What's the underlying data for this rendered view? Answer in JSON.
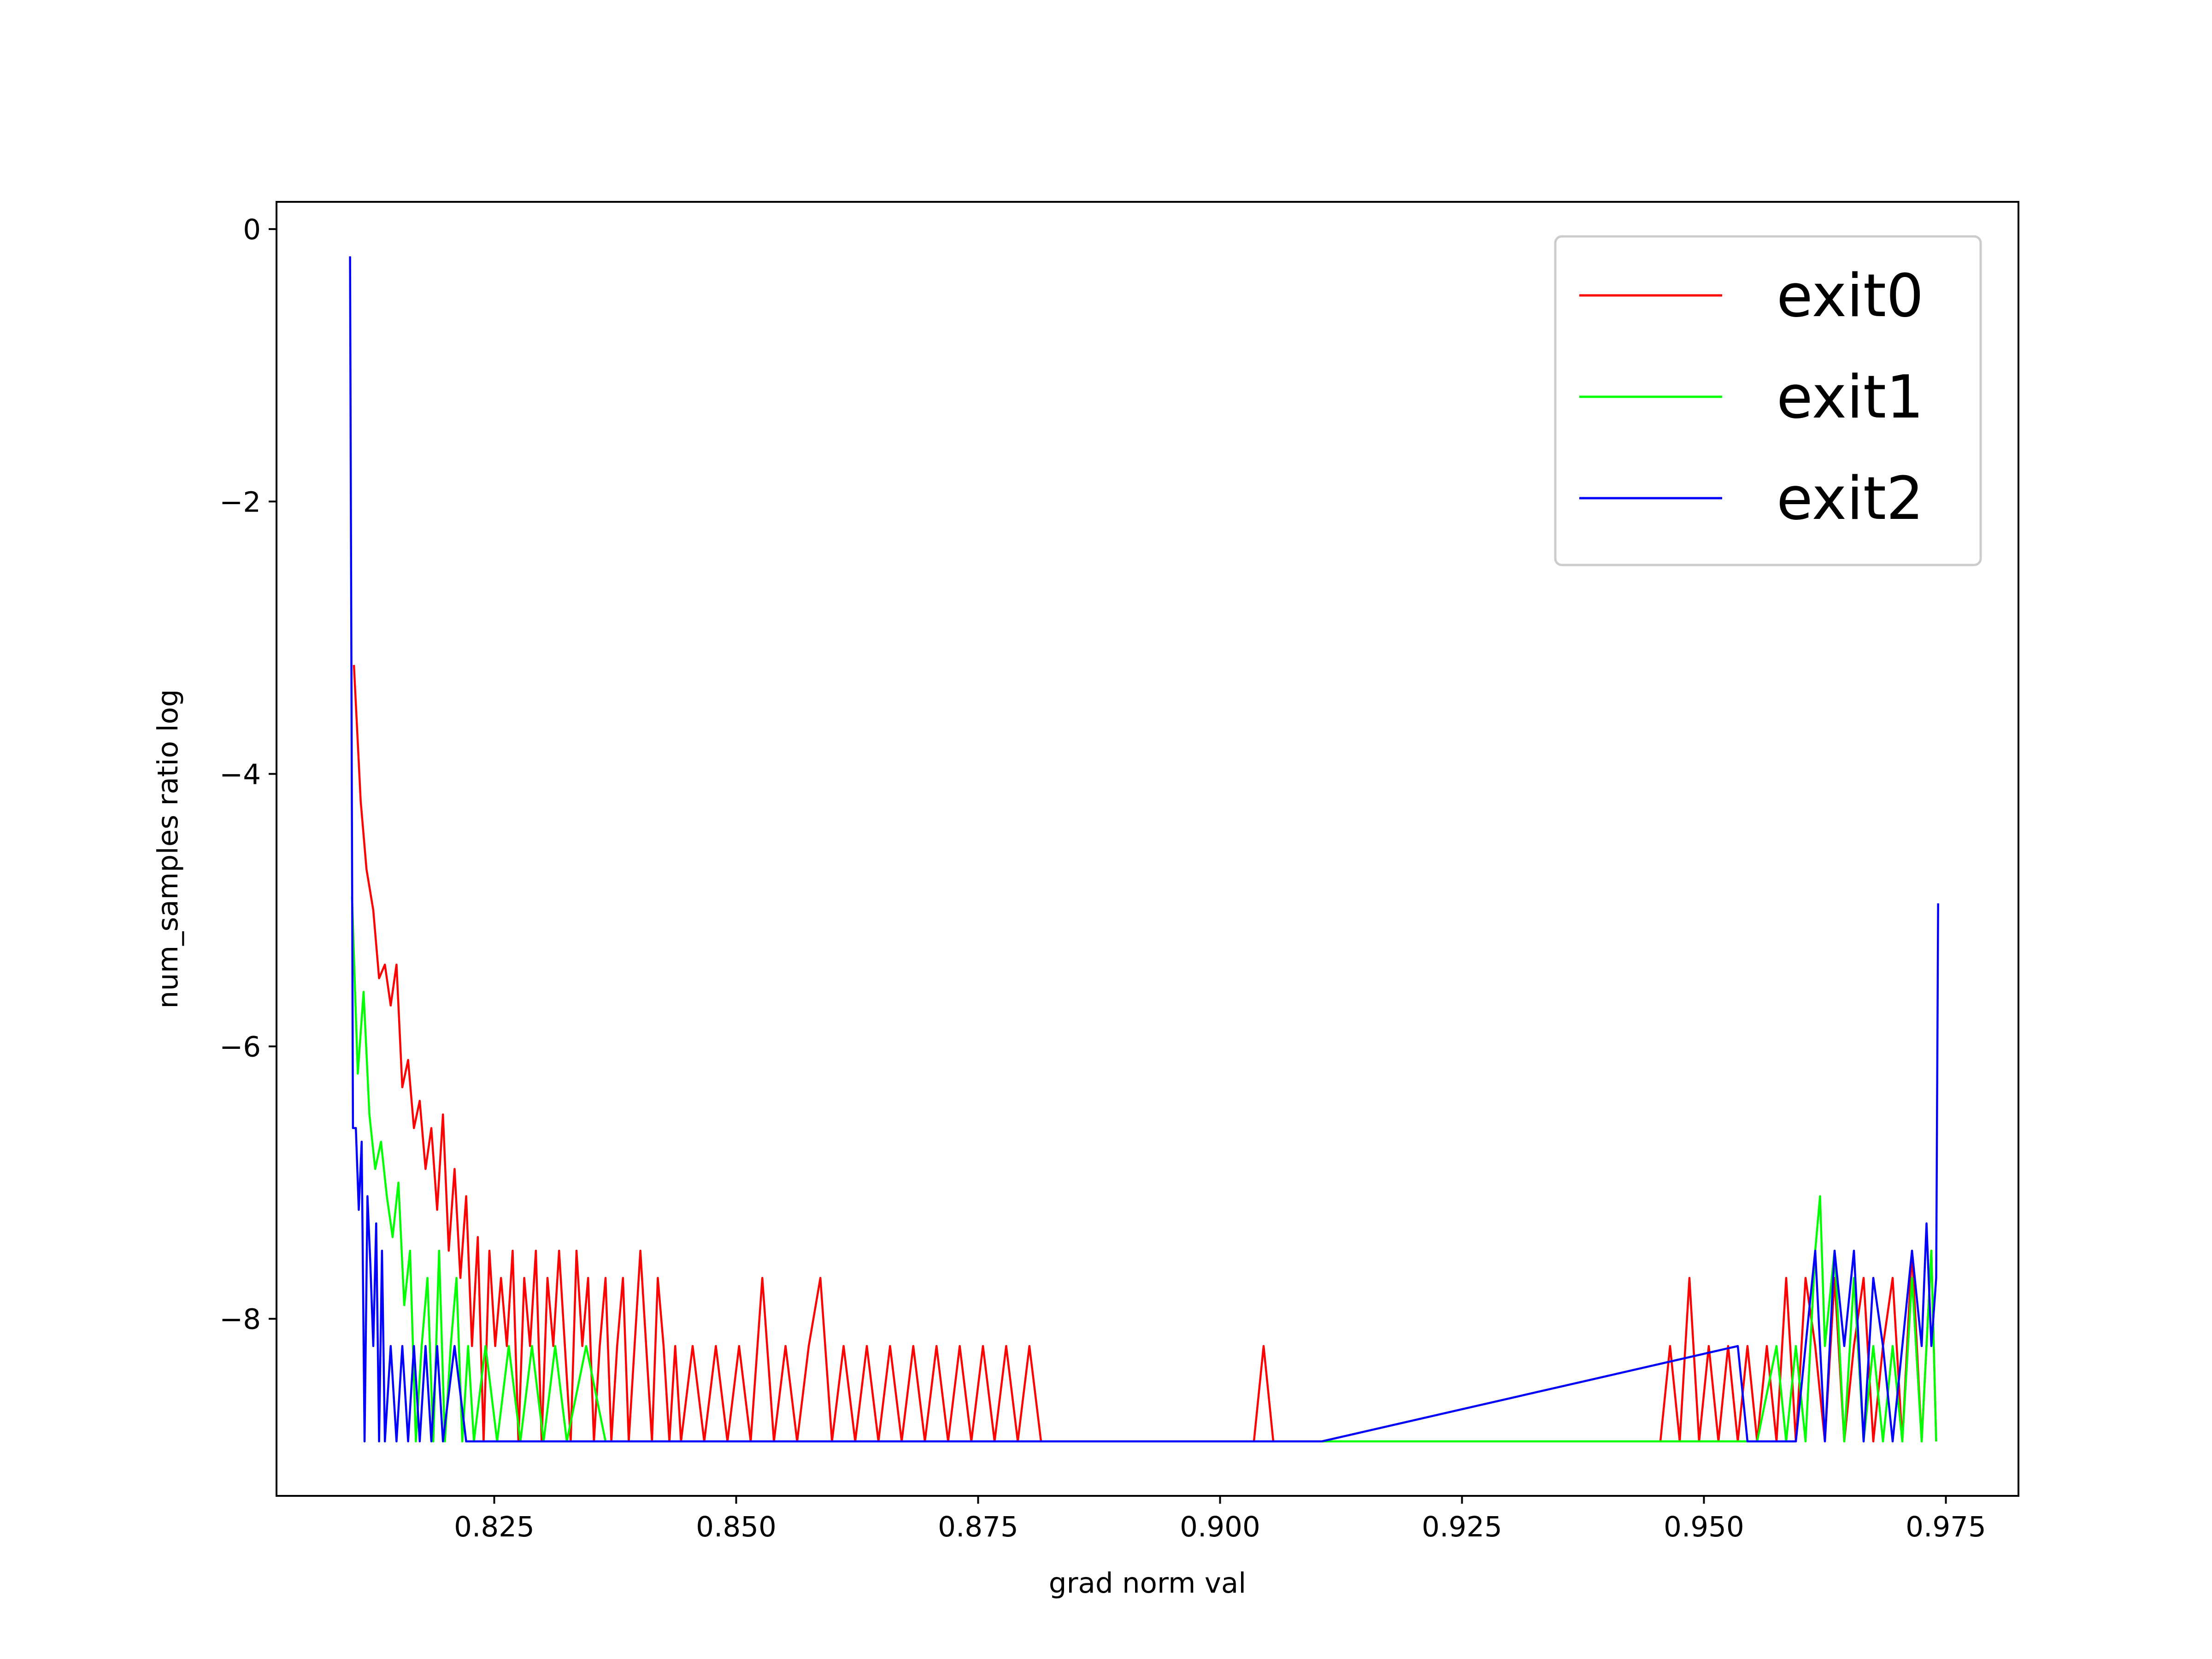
{
  "chart_data": {
    "type": "line",
    "title": "",
    "xlabel": "grad norm val",
    "ylabel": "num_samples ratio log",
    "xlim": [
      0.8025,
      0.9825
    ],
    "ylim": [
      -9.3,
      0.2
    ],
    "xticks": [
      {
        "value": 0.825,
        "label": "0.825"
      },
      {
        "value": 0.85,
        "label": "0.850"
      },
      {
        "value": 0.875,
        "label": "0.875"
      },
      {
        "value": 0.9,
        "label": "0.900"
      },
      {
        "value": 0.925,
        "label": "0.925"
      },
      {
        "value": 0.95,
        "label": "0.950"
      },
      {
        "value": 0.975,
        "label": "0.975"
      }
    ],
    "yticks": [
      {
        "value": 0,
        "label": "0"
      },
      {
        "value": -2,
        "label": "−2"
      },
      {
        "value": -4,
        "label": "−4"
      },
      {
        "value": -6,
        "label": "−6"
      },
      {
        "value": -8,
        "label": "−8"
      }
    ],
    "grid": false,
    "legend_position": "top-right",
    "series": [
      {
        "name": "exit0",
        "color": "#ff0000",
        "points": [
          [
            0.8105,
            -3.2
          ],
          [
            0.8112,
            -4.2
          ],
          [
            0.8118,
            -4.7
          ],
          [
            0.8125,
            -5.0
          ],
          [
            0.8131,
            -5.5
          ],
          [
            0.8137,
            -5.4
          ],
          [
            0.8143,
            -5.7
          ],
          [
            0.8149,
            -5.4
          ],
          [
            0.8155,
            -6.3
          ],
          [
            0.8161,
            -6.1
          ],
          [
            0.8167,
            -6.6
          ],
          [
            0.8173,
            -6.4
          ],
          [
            0.8179,
            -6.9
          ],
          [
            0.8185,
            -6.6
          ],
          [
            0.8191,
            -7.2
          ],
          [
            0.8197,
            -6.5
          ],
          [
            0.8203,
            -7.5
          ],
          [
            0.8209,
            -6.9
          ],
          [
            0.8215,
            -7.7
          ],
          [
            0.8221,
            -7.1
          ],
          [
            0.8227,
            -8.2
          ],
          [
            0.8233,
            -7.4
          ],
          [
            0.8239,
            -8.9
          ],
          [
            0.8245,
            -7.5
          ],
          [
            0.8251,
            -8.2
          ],
          [
            0.8257,
            -7.7
          ],
          [
            0.8263,
            -8.2
          ],
          [
            0.8269,
            -7.5
          ],
          [
            0.8275,
            -8.9
          ],
          [
            0.8281,
            -7.7
          ],
          [
            0.8287,
            -8.2
          ],
          [
            0.8293,
            -7.5
          ],
          [
            0.8299,
            -8.9
          ],
          [
            0.8305,
            -7.7
          ],
          [
            0.8311,
            -8.2
          ],
          [
            0.8317,
            -7.5
          ],
          [
            0.8323,
            -8.2
          ],
          [
            0.8329,
            -8.9
          ],
          [
            0.8335,
            -7.5
          ],
          [
            0.8341,
            -8.2
          ],
          [
            0.8347,
            -7.7
          ],
          [
            0.8353,
            -8.9
          ],
          [
            0.8359,
            -8.2
          ],
          [
            0.8365,
            -7.7
          ],
          [
            0.8371,
            -8.9
          ],
          [
            0.8377,
            -8.2
          ],
          [
            0.8383,
            -7.7
          ],
          [
            0.8389,
            -8.9
          ],
          [
            0.8395,
            -8.2
          ],
          [
            0.8401,
            -7.5
          ],
          [
            0.8407,
            -8.2
          ],
          [
            0.8413,
            -8.9
          ],
          [
            0.8419,
            -7.7
          ],
          [
            0.8425,
            -8.2
          ],
          [
            0.8431,
            -8.9
          ],
          [
            0.8437,
            -8.2
          ],
          [
            0.8443,
            -8.9
          ],
          [
            0.8455,
            -8.2
          ],
          [
            0.8467,
            -8.9
          ],
          [
            0.8479,
            -8.2
          ],
          [
            0.8491,
            -8.9
          ],
          [
            0.8503,
            -8.2
          ],
          [
            0.8515,
            -8.9
          ],
          [
            0.8527,
            -7.7
          ],
          [
            0.8539,
            -8.9
          ],
          [
            0.8551,
            -8.2
          ],
          [
            0.8563,
            -8.9
          ],
          [
            0.8575,
            -8.2
          ],
          [
            0.8587,
            -7.7
          ],
          [
            0.8599,
            -8.9
          ],
          [
            0.8611,
            -8.2
          ],
          [
            0.8623,
            -8.9
          ],
          [
            0.8635,
            -8.2
          ],
          [
            0.8647,
            -8.9
          ],
          [
            0.8659,
            -8.2
          ],
          [
            0.8671,
            -8.9
          ],
          [
            0.8683,
            -8.2
          ],
          [
            0.8695,
            -8.9
          ],
          [
            0.8707,
            -8.2
          ],
          [
            0.8719,
            -8.9
          ],
          [
            0.8731,
            -8.2
          ],
          [
            0.8743,
            -8.9
          ],
          [
            0.8755,
            -8.2
          ],
          [
            0.8767,
            -8.9
          ],
          [
            0.8779,
            -8.2
          ],
          [
            0.8791,
            -8.9
          ],
          [
            0.8803,
            -8.2
          ],
          [
            0.8815,
            -8.9
          ],
          [
            0.8835,
            -8.9
          ],
          [
            0.8855,
            -8.9
          ],
          [
            0.8875,
            -8.9
          ],
          [
            0.8895,
            -8.9
          ],
          [
            0.8915,
            -8.9
          ],
          [
            0.8935,
            -8.9
          ],
          [
            0.8955,
            -8.9
          ],
          [
            0.8975,
            -8.9
          ],
          [
            0.8995,
            -8.9
          ],
          [
            0.9015,
            -8.9
          ],
          [
            0.9035,
            -8.9
          ],
          [
            0.9045,
            -8.2
          ],
          [
            0.9055,
            -8.9
          ],
          [
            0.9095,
            -8.9
          ],
          [
            0.9135,
            -8.9
          ],
          [
            0.9175,
            -8.9
          ],
          [
            0.9215,
            -8.9
          ],
          [
            0.9255,
            -8.9
          ],
          [
            0.9295,
            -8.9
          ],
          [
            0.9335,
            -8.9
          ],
          [
            0.9375,
            -8.9
          ],
          [
            0.9415,
            -8.9
          ],
          [
            0.9455,
            -8.9
          ],
          [
            0.9465,
            -8.2
          ],
          [
            0.9475,
            -8.9
          ],
          [
            0.9485,
            -7.7
          ],
          [
            0.9495,
            -8.9
          ],
          [
            0.9505,
            -8.2
          ],
          [
            0.9515,
            -8.9
          ],
          [
            0.9525,
            -8.2
          ],
          [
            0.9535,
            -8.9
          ],
          [
            0.9545,
            -8.2
          ],
          [
            0.9555,
            -8.9
          ],
          [
            0.9565,
            -8.2
          ],
          [
            0.9575,
            -8.9
          ],
          [
            0.9585,
            -7.7
          ],
          [
            0.9595,
            -8.9
          ],
          [
            0.9605,
            -7.7
          ],
          [
            0.9615,
            -8.2
          ],
          [
            0.9625,
            -8.9
          ],
          [
            0.9635,
            -7.7
          ],
          [
            0.9645,
            -8.9
          ],
          [
            0.9655,
            -8.2
          ],
          [
            0.9665,
            -7.7
          ],
          [
            0.9675,
            -8.9
          ],
          [
            0.9685,
            -8.2
          ],
          [
            0.9695,
            -7.7
          ],
          [
            0.9705,
            -8.9
          ],
          [
            0.9715,
            -7.5
          ],
          [
            0.9725,
            -8.9
          ],
          [
            0.9735,
            -7.5
          ],
          [
            0.974,
            -8.9
          ]
        ]
      },
      {
        "name": "exit1",
        "color": "#00ff00",
        "points": [
          [
            0.8103,
            -4.9
          ],
          [
            0.8109,
            -6.2
          ],
          [
            0.8115,
            -5.6
          ],
          [
            0.8121,
            -6.5
          ],
          [
            0.8127,
            -6.9
          ],
          [
            0.8133,
            -6.7
          ],
          [
            0.8139,
            -7.1
          ],
          [
            0.8145,
            -7.4
          ],
          [
            0.8151,
            -7.0
          ],
          [
            0.8157,
            -7.9
          ],
          [
            0.8163,
            -7.5
          ],
          [
            0.8169,
            -8.9
          ],
          [
            0.8175,
            -8.2
          ],
          [
            0.8181,
            -7.7
          ],
          [
            0.8187,
            -8.9
          ],
          [
            0.8193,
            -7.5
          ],
          [
            0.8199,
            -8.9
          ],
          [
            0.8205,
            -8.2
          ],
          [
            0.8211,
            -7.7
          ],
          [
            0.8217,
            -8.9
          ],
          [
            0.8223,
            -8.2
          ],
          [
            0.8229,
            -8.9
          ],
          [
            0.8241,
            -8.2
          ],
          [
            0.8253,
            -8.9
          ],
          [
            0.8265,
            -8.2
          ],
          [
            0.8277,
            -8.9
          ],
          [
            0.8289,
            -8.2
          ],
          [
            0.8301,
            -8.9
          ],
          [
            0.8313,
            -8.2
          ],
          [
            0.8325,
            -8.9
          ],
          [
            0.8345,
            -8.2
          ],
          [
            0.8365,
            -8.9
          ],
          [
            0.8385,
            -8.9
          ],
          [
            0.8405,
            -8.9
          ],
          [
            0.8465,
            -8.9
          ],
          [
            0.8525,
            -8.9
          ],
          [
            0.8585,
            -8.9
          ],
          [
            0.8705,
            -8.9
          ],
          [
            0.8765,
            -8.9
          ],
          [
            0.8805,
            -8.9
          ],
          [
            0.8955,
            -8.9
          ],
          [
            0.9185,
            -8.9
          ],
          [
            0.9275,
            -8.9
          ],
          [
            0.9555,
            -8.9
          ],
          [
            0.9575,
            -8.2
          ],
          [
            0.9585,
            -8.9
          ],
          [
            0.9595,
            -8.2
          ],
          [
            0.9605,
            -8.9
          ],
          [
            0.9615,
            -7.5
          ],
          [
            0.962,
            -7.1
          ],
          [
            0.9625,
            -8.2
          ],
          [
            0.9635,
            -7.5
          ],
          [
            0.9645,
            -8.9
          ],
          [
            0.9655,
            -7.7
          ],
          [
            0.9665,
            -8.9
          ],
          [
            0.9675,
            -8.2
          ],
          [
            0.9685,
            -8.9
          ],
          [
            0.9695,
            -8.2
          ],
          [
            0.9705,
            -8.9
          ],
          [
            0.9715,
            -7.7
          ],
          [
            0.9725,
            -8.9
          ],
          [
            0.9735,
            -7.5
          ],
          [
            0.974,
            -8.9
          ]
        ]
      },
      {
        "name": "exit2",
        "color": "#0000ff",
        "points": [
          [
            0.8101,
            -0.2
          ],
          [
            0.8104,
            -6.6
          ],
          [
            0.8107,
            -6.6
          ],
          [
            0.811,
            -7.2
          ],
          [
            0.8113,
            -6.7
          ],
          [
            0.8116,
            -8.9
          ],
          [
            0.8119,
            -7.1
          ],
          [
            0.8122,
            -7.6
          ],
          [
            0.8125,
            -8.2
          ],
          [
            0.8128,
            -7.3
          ],
          [
            0.8131,
            -8.9
          ],
          [
            0.8134,
            -7.5
          ],
          [
            0.8137,
            -8.9
          ],
          [
            0.8143,
            -8.2
          ],
          [
            0.8149,
            -8.9
          ],
          [
            0.8155,
            -8.2
          ],
          [
            0.8161,
            -8.9
          ],
          [
            0.8167,
            -8.2
          ],
          [
            0.8173,
            -8.9
          ],
          [
            0.8179,
            -8.2
          ],
          [
            0.8185,
            -8.9
          ],
          [
            0.8191,
            -8.2
          ],
          [
            0.8197,
            -8.9
          ],
          [
            0.8209,
            -8.2
          ],
          [
            0.8221,
            -8.9
          ],
          [
            0.8245,
            -8.9
          ],
          [
            0.8285,
            -8.9
          ],
          [
            0.8345,
            -8.9
          ],
          [
            0.8425,
            -8.9
          ],
          [
            0.8525,
            -8.9
          ],
          [
            0.8695,
            -8.9
          ],
          [
            0.8885,
            -8.9
          ],
          [
            0.9025,
            -8.9
          ],
          [
            0.9105,
            -8.9
          ],
          [
            0.9535,
            -8.2
          ],
          [
            0.9545,
            -8.9
          ],
          [
            0.9595,
            -8.9
          ],
          [
            0.9605,
            -8.2
          ],
          [
            0.9615,
            -7.5
          ],
          [
            0.9625,
            -8.9
          ],
          [
            0.9635,
            -7.5
          ],
          [
            0.9645,
            -8.2
          ],
          [
            0.9655,
            -7.5
          ],
          [
            0.9665,
            -8.9
          ],
          [
            0.9675,
            -7.7
          ],
          [
            0.9685,
            -8.2
          ],
          [
            0.9695,
            -8.9
          ],
          [
            0.9705,
            -8.2
          ],
          [
            0.9715,
            -7.5
          ],
          [
            0.9725,
            -8.2
          ],
          [
            0.973,
            -7.3
          ],
          [
            0.9735,
            -8.2
          ],
          [
            0.974,
            -7.7
          ],
          [
            0.9742,
            -4.95
          ]
        ]
      }
    ]
  }
}
